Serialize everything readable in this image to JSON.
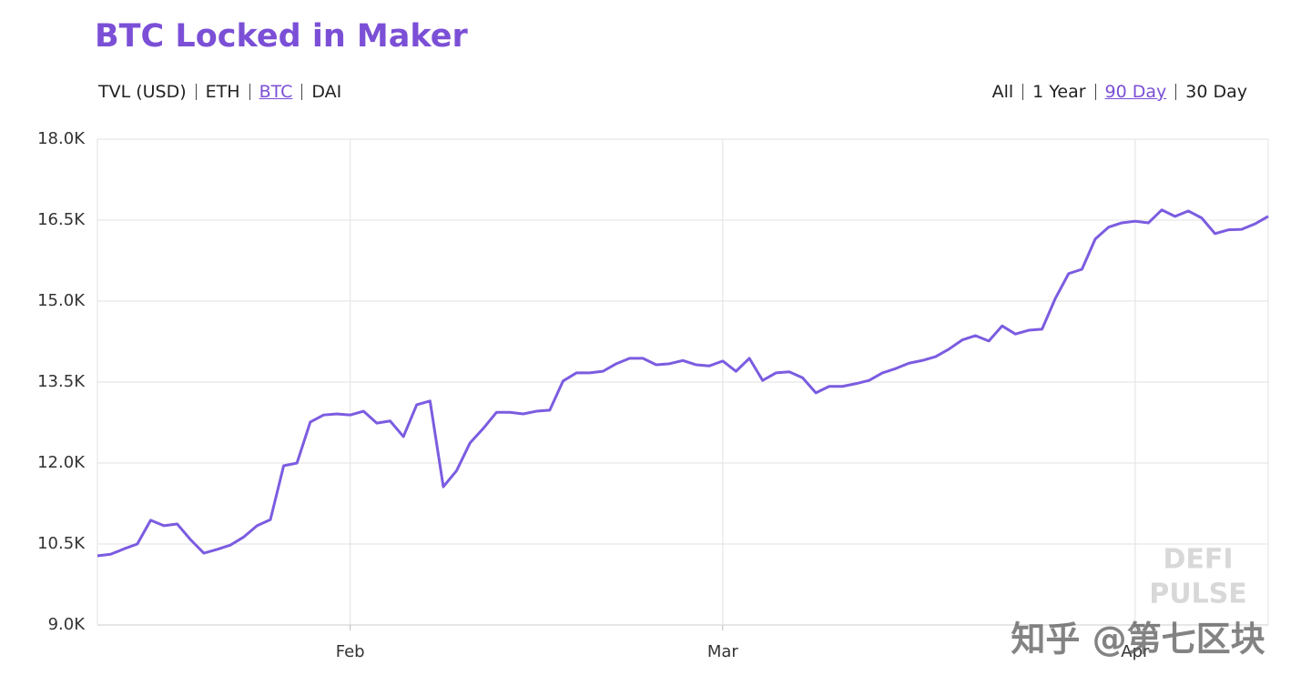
{
  "header": {
    "title": "BTC Locked in Maker",
    "data_tabs": [
      "TVL (USD)",
      "ETH",
      "BTC",
      "DAI"
    ],
    "data_tab_selected": 2,
    "range_tabs": [
      "All",
      "1 Year",
      "90 Day",
      "30 Day"
    ],
    "range_tab_selected": 2
  },
  "chart_data": {
    "type": "line",
    "categories": [
      null,
      null,
      null,
      null,
      null,
      null,
      null,
      null,
      null,
      null,
      null,
      null,
      null,
      null,
      null,
      null,
      null,
      null,
      null,
      "Feb",
      null,
      null,
      null,
      null,
      null,
      null,
      null,
      null,
      null,
      null,
      null,
      null,
      null,
      null,
      null,
      null,
      null,
      null,
      null,
      null,
      null,
      null,
      null,
      null,
      null,
      null,
      null,
      "Mar",
      null,
      null,
      null,
      null,
      null,
      null,
      null,
      null,
      null,
      null,
      null,
      null,
      null,
      null,
      null,
      null,
      null,
      null,
      null,
      null,
      null,
      null,
      null,
      null,
      null,
      null,
      null,
      null,
      null,
      null,
      "Apr",
      null,
      null,
      null,
      null,
      null,
      null,
      null,
      null,
      null,
      null
    ],
    "series": [
      {
        "name": "BTC",
        "color": "#7b5ce0",
        "values": [
          10280,
          10310,
          10410,
          10500,
          10940,
          10840,
          10870,
          10580,
          10330,
          10400,
          10480,
          10630,
          10840,
          10950,
          11950,
          12000,
          12760,
          12890,
          12910,
          12890,
          12960,
          12740,
          12780,
          12490,
          13080,
          13150,
          11560,
          11860,
          12370,
          12640,
          12940,
          12940,
          12910,
          12960,
          12980,
          13520,
          13670,
          13670,
          13700,
          13840,
          13940,
          13940,
          13820,
          13840,
          13900,
          13820,
          13800,
          13890,
          13700,
          13940,
          13530,
          13670,
          13690,
          13580,
          13300,
          13420,
          13420,
          13470,
          13530,
          13670,
          13750,
          13850,
          13900,
          13970,
          14110,
          14280,
          14360,
          14260,
          14540,
          14390,
          14460,
          14480,
          15050,
          15510,
          15590,
          16150,
          16370,
          16450,
          16480,
          16450,
          16690,
          16570,
          16670,
          16540,
          16250,
          16320,
          16330,
          16430,
          16570
        ]
      }
    ],
    "ylim": [
      9000,
      18000
    ],
    "yticks": [
      {
        "value": 9000,
        "label": "9.0K"
      },
      {
        "value": 10500,
        "label": "10.5K"
      },
      {
        "value": 12000,
        "label": "12.0K"
      },
      {
        "value": 13500,
        "label": "13.5K"
      },
      {
        "value": 15000,
        "label": "15.0K"
      },
      {
        "value": 16500,
        "label": "16.5K"
      },
      {
        "value": 18000,
        "label": "18.0K"
      }
    ],
    "grid": true,
    "watermarks": [
      "DEFI",
      "PULSE",
      "知乎 @第七区块"
    ]
  }
}
